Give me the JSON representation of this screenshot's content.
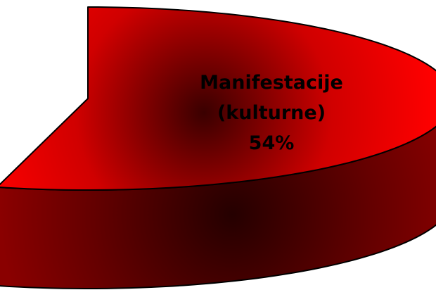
{
  "chart_data": {
    "type": "pie",
    "categories": [
      "Manifestacije (kulturne)"
    ],
    "values": [
      54
    ],
    "value_labels": [
      "54%"
    ],
    "color": "#ff0000"
  }
}
